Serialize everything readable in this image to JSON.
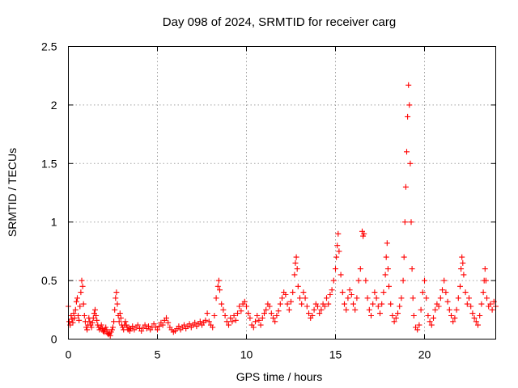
{
  "chart_data": {
    "type": "scatter",
    "title": "Day 098 of 2024, SRMTID for receiver carg",
    "xlabel": "GPS time / hours",
    "ylabel": "SRMTID / TECUs",
    "xlim": [
      0,
      24
    ],
    "ylim": [
      0,
      2.5
    ],
    "xticks": [
      0,
      5,
      10,
      15,
      20
    ],
    "yticks": [
      0,
      0.5,
      1,
      1.5,
      2,
      2.5
    ],
    "xtick_labels": [
      "0",
      "5",
      "10",
      "15",
      "20"
    ],
    "ytick_labels": [
      "0",
      "0.5",
      "1",
      "1.5",
      "2",
      "2.5"
    ],
    "grid": true,
    "marker": "+",
    "color": "#ff0000",
    "series": [
      {
        "name": "carg",
        "points": [
          [
            0.0,
            0.28
          ],
          [
            0.05,
            0.15
          ],
          [
            0.1,
            0.12
          ],
          [
            0.15,
            0.2
          ],
          [
            0.2,
            0.17
          ],
          [
            0.25,
            0.14
          ],
          [
            0.3,
            0.22
          ],
          [
            0.35,
            0.18
          ],
          [
            0.4,
            0.25
          ],
          [
            0.45,
            0.32
          ],
          [
            0.5,
            0.35
          ],
          [
            0.55,
            0.2
          ],
          [
            0.6,
            0.16
          ],
          [
            0.65,
            0.28
          ],
          [
            0.7,
            0.4
          ],
          [
            0.75,
            0.5
          ],
          [
            0.8,
            0.45
          ],
          [
            0.85,
            0.3
          ],
          [
            0.9,
            0.2
          ],
          [
            0.95,
            0.15
          ],
          [
            1.0,
            0.1
          ],
          [
            1.05,
            0.08
          ],
          [
            1.1,
            0.12
          ],
          [
            1.15,
            0.18
          ],
          [
            1.2,
            0.15
          ],
          [
            1.25,
            0.12
          ],
          [
            1.3,
            0.1
          ],
          [
            1.35,
            0.14
          ],
          [
            1.4,
            0.18
          ],
          [
            1.45,
            0.22
          ],
          [
            1.5,
            0.25
          ],
          [
            1.55,
            0.2
          ],
          [
            1.6,
            0.16
          ],
          [
            1.65,
            0.12
          ],
          [
            1.7,
            0.1
          ],
          [
            1.75,
            0.08
          ],
          [
            1.8,
            0.1
          ],
          [
            1.85,
            0.12
          ],
          [
            1.9,
            0.09
          ],
          [
            1.95,
            0.07
          ],
          [
            2.0,
            0.06
          ],
          [
            2.05,
            0.08
          ],
          [
            2.1,
            0.1
          ],
          [
            2.15,
            0.08
          ],
          [
            2.2,
            0.05
          ],
          [
            2.25,
            0.04
          ],
          [
            2.3,
            0.05
          ],
          [
            2.35,
            0.03
          ],
          [
            2.4,
            0.06
          ],
          [
            2.45,
            0.08
          ],
          [
            2.5,
            0.1
          ],
          [
            2.55,
            0.15
          ],
          [
            2.6,
            0.25
          ],
          [
            2.65,
            0.35
          ],
          [
            2.7,
            0.4
          ],
          [
            2.75,
            0.3
          ],
          [
            2.8,
            0.2
          ],
          [
            2.85,
            0.15
          ],
          [
            2.9,
            0.22
          ],
          [
            2.95,
            0.18
          ],
          [
            3.0,
            0.12
          ],
          [
            3.05,
            0.1
          ],
          [
            3.1,
            0.08
          ],
          [
            3.15,
            0.12
          ],
          [
            3.2,
            0.15
          ],
          [
            3.25,
            0.12
          ],
          [
            3.3,
            0.1
          ],
          [
            3.35,
            0.08
          ],
          [
            3.4,
            0.1
          ],
          [
            3.45,
            0.07
          ],
          [
            3.5,
            0.09
          ],
          [
            3.6,
            0.11
          ],
          [
            3.7,
            0.08
          ],
          [
            3.8,
            0.1
          ],
          [
            3.9,
            0.12
          ],
          [
            4.0,
            0.09
          ],
          [
            4.1,
            0.07
          ],
          [
            4.2,
            0.1
          ],
          [
            4.3,
            0.12
          ],
          [
            4.4,
            0.09
          ],
          [
            4.5,
            0.11
          ],
          [
            4.6,
            0.08
          ],
          [
            4.7,
            0.1
          ],
          [
            4.8,
            0.13
          ],
          [
            4.9,
            0.1
          ],
          [
            5.0,
            0.08
          ],
          [
            5.1,
            0.11
          ],
          [
            5.2,
            0.14
          ],
          [
            5.3,
            0.12
          ],
          [
            5.4,
            0.16
          ],
          [
            5.5,
            0.18
          ],
          [
            5.6,
            0.14
          ],
          [
            5.7,
            0.1
          ],
          [
            5.8,
            0.08
          ],
          [
            5.9,
            0.06
          ],
          [
            6.0,
            0.07
          ],
          [
            6.1,
            0.09
          ],
          [
            6.2,
            0.11
          ],
          [
            6.3,
            0.08
          ],
          [
            6.4,
            0.1
          ],
          [
            6.5,
            0.12
          ],
          [
            6.6,
            0.09
          ],
          [
            6.7,
            0.11
          ],
          [
            6.8,
            0.13
          ],
          [
            6.9,
            0.1
          ],
          [
            7.0,
            0.12
          ],
          [
            7.1,
            0.14
          ],
          [
            7.2,
            0.11
          ],
          [
            7.3,
            0.13
          ],
          [
            7.4,
            0.15
          ],
          [
            7.5,
            0.12
          ],
          [
            7.6,
            0.14
          ],
          [
            7.7,
            0.16
          ],
          [
            7.8,
            0.22
          ],
          [
            7.9,
            0.15
          ],
          [
            8.0,
            0.12
          ],
          [
            8.1,
            0.1
          ],
          [
            8.2,
            0.2
          ],
          [
            8.3,
            0.35
          ],
          [
            8.4,
            0.45
          ],
          [
            8.45,
            0.5
          ],
          [
            8.5,
            0.42
          ],
          [
            8.6,
            0.3
          ],
          [
            8.7,
            0.25
          ],
          [
            8.8,
            0.2
          ],
          [
            8.9,
            0.15
          ],
          [
            9.0,
            0.12
          ],
          [
            9.1,
            0.18
          ],
          [
            9.2,
            0.15
          ],
          [
            9.3,
            0.2
          ],
          [
            9.4,
            0.16
          ],
          [
            9.5,
            0.22
          ],
          [
            9.6,
            0.28
          ],
          [
            9.7,
            0.24
          ],
          [
            9.8,
            0.3
          ],
          [
            9.9,
            0.32
          ],
          [
            10.0,
            0.28
          ],
          [
            10.1,
            0.22
          ],
          [
            10.2,
            0.18
          ],
          [
            10.3,
            0.12
          ],
          [
            10.4,
            0.1
          ],
          [
            10.5,
            0.15
          ],
          [
            10.6,
            0.2
          ],
          [
            10.7,
            0.16
          ],
          [
            10.8,
            0.12
          ],
          [
            10.9,
            0.18
          ],
          [
            11.0,
            0.22
          ],
          [
            11.1,
            0.25
          ],
          [
            11.2,
            0.3
          ],
          [
            11.3,
            0.28
          ],
          [
            11.4,
            0.22
          ],
          [
            11.5,
            0.18
          ],
          [
            11.6,
            0.15
          ],
          [
            11.7,
            0.2
          ],
          [
            11.8,
            0.24
          ],
          [
            11.9,
            0.3
          ],
          [
            12.0,
            0.35
          ],
          [
            12.1,
            0.4
          ],
          [
            12.2,
            0.38
          ],
          [
            12.3,
            0.3
          ],
          [
            12.4,
            0.25
          ],
          [
            12.5,
            0.32
          ],
          [
            12.6,
            0.4
          ],
          [
            12.7,
            0.55
          ],
          [
            12.75,
            0.65
          ],
          [
            12.8,
            0.7
          ],
          [
            12.85,
            0.6
          ],
          [
            12.9,
            0.45
          ],
          [
            13.0,
            0.35
          ],
          [
            13.1,
            0.3
          ],
          [
            13.2,
            0.4
          ],
          [
            13.3,
            0.35
          ],
          [
            13.4,
            0.28
          ],
          [
            13.5,
            0.22
          ],
          [
            13.6,
            0.18
          ],
          [
            13.7,
            0.2
          ],
          [
            13.8,
            0.25
          ],
          [
            13.9,
            0.3
          ],
          [
            14.0,
            0.28
          ],
          [
            14.1,
            0.22
          ],
          [
            14.2,
            0.25
          ],
          [
            14.3,
            0.3
          ],
          [
            14.4,
            0.28
          ],
          [
            14.5,
            0.35
          ],
          [
            14.6,
            0.3
          ],
          [
            14.7,
            0.38
          ],
          [
            14.8,
            0.42
          ],
          [
            14.9,
            0.5
          ],
          [
            15.0,
            0.6
          ],
          [
            15.05,
            0.7
          ],
          [
            15.1,
            0.8
          ],
          [
            15.15,
            0.9
          ],
          [
            15.2,
            0.75
          ],
          [
            15.3,
            0.55
          ],
          [
            15.4,
            0.4
          ],
          [
            15.5,
            0.3
          ],
          [
            15.6,
            0.25
          ],
          [
            15.7,
            0.35
          ],
          [
            15.8,
            0.42
          ],
          [
            15.9,
            0.38
          ],
          [
            16.0,
            0.3
          ],
          [
            16.1,
            0.25
          ],
          [
            16.2,
            0.35
          ],
          [
            16.3,
            0.5
          ],
          [
            16.4,
            0.6
          ],
          [
            16.5,
            0.92
          ],
          [
            16.55,
            0.88
          ],
          [
            16.6,
            0.9
          ],
          [
            16.7,
            0.5
          ],
          [
            16.8,
            0.35
          ],
          [
            16.9,
            0.25
          ],
          [
            17.0,
            0.2
          ],
          [
            17.1,
            0.3
          ],
          [
            17.2,
            0.4
          ],
          [
            17.3,
            0.35
          ],
          [
            17.4,
            0.28
          ],
          [
            17.5,
            0.22
          ],
          [
            17.6,
            0.3
          ],
          [
            17.7,
            0.4
          ],
          [
            17.8,
            0.55
          ],
          [
            17.85,
            0.7
          ],
          [
            17.9,
            0.82
          ],
          [
            17.95,
            0.6
          ],
          [
            18.0,
            0.45
          ],
          [
            18.1,
            0.3
          ],
          [
            18.2,
            0.2
          ],
          [
            18.3,
            0.15
          ],
          [
            18.4,
            0.18
          ],
          [
            18.5,
            0.22
          ],
          [
            18.6,
            0.28
          ],
          [
            18.7,
            0.35
          ],
          [
            18.8,
            0.5
          ],
          [
            18.85,
            0.7
          ],
          [
            18.9,
            1.0
          ],
          [
            18.95,
            1.3
          ],
          [
            19.0,
            1.6
          ],
          [
            19.05,
            1.9
          ],
          [
            19.1,
            2.17
          ],
          [
            19.15,
            2.0
          ],
          [
            19.2,
            1.5
          ],
          [
            19.25,
            1.0
          ],
          [
            19.3,
            0.6
          ],
          [
            19.35,
            0.35
          ],
          [
            19.4,
            0.2
          ],
          [
            19.5,
            0.1
          ],
          [
            19.6,
            0.08
          ],
          [
            19.7,
            0.12
          ],
          [
            19.8,
            0.25
          ],
          [
            19.9,
            0.4
          ],
          [
            20.0,
            0.5
          ],
          [
            20.1,
            0.35
          ],
          [
            20.2,
            0.2
          ],
          [
            20.3,
            0.15
          ],
          [
            20.4,
            0.12
          ],
          [
            20.5,
            0.18
          ],
          [
            20.6,
            0.25
          ],
          [
            20.7,
            0.3
          ],
          [
            20.8,
            0.28
          ],
          [
            20.9,
            0.35
          ],
          [
            21.0,
            0.42
          ],
          [
            21.1,
            0.5
          ],
          [
            21.2,
            0.4
          ],
          [
            21.3,
            0.32
          ],
          [
            21.4,
            0.25
          ],
          [
            21.5,
            0.2
          ],
          [
            21.6,
            0.15
          ],
          [
            21.7,
            0.18
          ],
          [
            21.8,
            0.25
          ],
          [
            21.9,
            0.35
          ],
          [
            22.0,
            0.45
          ],
          [
            22.05,
            0.6
          ],
          [
            22.1,
            0.7
          ],
          [
            22.15,
            0.65
          ],
          [
            22.2,
            0.55
          ],
          [
            22.3,
            0.4
          ],
          [
            22.4,
            0.3
          ],
          [
            22.5,
            0.35
          ],
          [
            22.6,
            0.28
          ],
          [
            22.7,
            0.22
          ],
          [
            22.8,
            0.18
          ],
          [
            22.9,
            0.15
          ],
          [
            23.0,
            0.12
          ],
          [
            23.1,
            0.2
          ],
          [
            23.2,
            0.3
          ],
          [
            23.3,
            0.4
          ],
          [
            23.35,
            0.5
          ],
          [
            23.4,
            0.6
          ],
          [
            23.45,
            0.5
          ],
          [
            23.5,
            0.35
          ],
          [
            23.6,
            0.28
          ],
          [
            23.7,
            0.3
          ],
          [
            23.8,
            0.25
          ],
          [
            23.9,
            0.32
          ],
          [
            24.0,
            0.28
          ]
        ]
      }
    ]
  }
}
